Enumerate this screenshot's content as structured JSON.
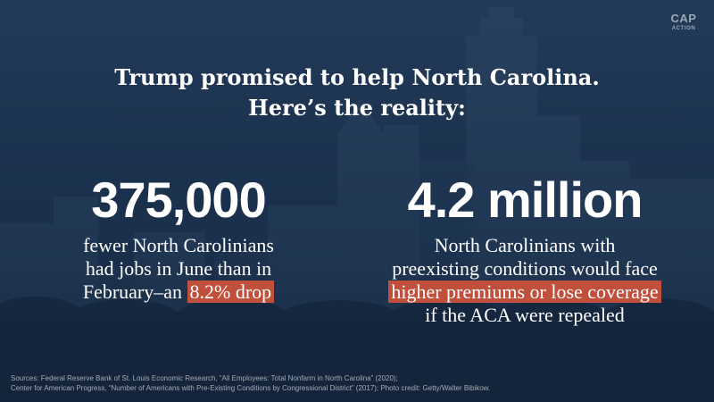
{
  "logo": {
    "line1": "CAP",
    "line2": "ACTION"
  },
  "headline": {
    "line1": "Trump promised to help North Carolina.",
    "line2": "Here’s the reality:"
  },
  "stat_left": {
    "number": "375,000",
    "line1": "fewer North Carolinians",
    "line2": "had jobs in June than in",
    "line3_plain": "February–an ",
    "line3_highlight": "8.2% drop"
  },
  "stat_right": {
    "number": "4.2 million",
    "line1": "North Carolinians with",
    "line2": "preexisting conditions would face",
    "line3_highlight": "higher premiums or lose coverage",
    "line4": "if the ACA were repealed"
  },
  "sources": {
    "line1": "Sources: Federal Reserve Bank of St. Louis Economic Research, “All Employees: Total Nonfarm in North Carolina” (2020);",
    "line2": "Center for American Progress, “Number of Americans with Pre-Existing Conditions by Congressional District” (2017);  Photo credit: Getty/Walter Bibikow."
  },
  "colors": {
    "background": "#223b5a",
    "highlight": "#c0503c",
    "text": "#ffffff"
  }
}
